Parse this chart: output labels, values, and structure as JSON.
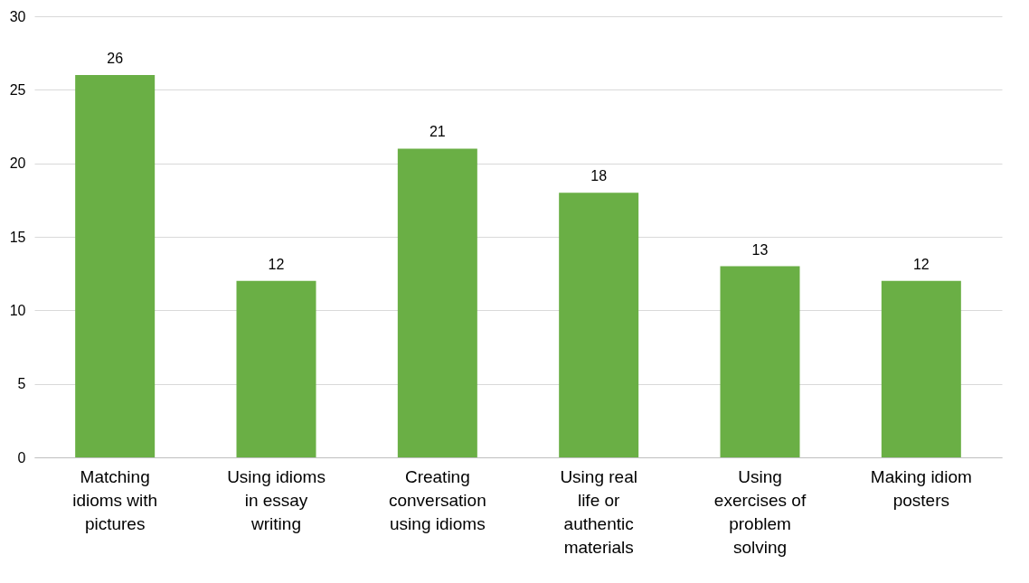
{
  "chart_data": {
    "type": "bar",
    "categories": [
      "Matching idioms with pictures",
      "Using idioms in essay writing",
      "Creating conversation using idioms",
      "Using real life or authentic materials",
      "Using exercises of problem solving",
      "Making idiom posters"
    ],
    "values": [
      26,
      12,
      21,
      18,
      13,
      12
    ],
    "color": "#6aaf45",
    "ylim": [
      0,
      30
    ],
    "yticks": [
      0,
      5,
      10,
      15,
      20,
      25,
      30
    ],
    "grid": "y",
    "data_labels": true
  }
}
